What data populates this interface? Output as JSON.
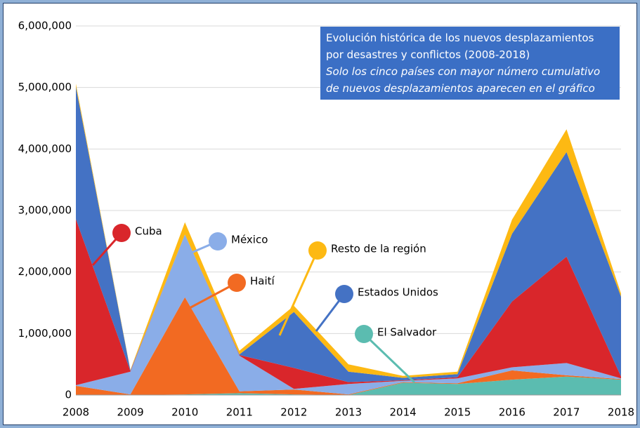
{
  "chart_data": {
    "type": "stacked_area",
    "title": "Evolución histórica de los nuevos desplazamientos por desastres y conflictos (2008-2018)",
    "subtitle": "Solo los cinco países con mayor número cumulativo de nuevos desplazamientos aparecen en el gráfico",
    "x": [
      2008,
      2009,
      2010,
      2011,
      2012,
      2013,
      2014,
      2015,
      2016,
      2017,
      2018
    ],
    "xlim": [
      2008,
      2018
    ],
    "xticks": [
      2008,
      2009,
      2010,
      2011,
      2012,
      2013,
      2014,
      2015,
      2016,
      2017,
      2018
    ],
    "ylim": [
      0,
      6000000
    ],
    "yticks": [
      0,
      {
        "value": 1000000,
        "label": "1,000,000"
      },
      {
        "value": 2000000,
        "label": "2,000,000"
      },
      {
        "value": 3000000,
        "label": "3,000,000"
      },
      {
        "value": 4000000,
        "label": "4,000,000"
      },
      {
        "value": 5000000,
        "label": "5,000,000"
      },
      {
        "value": 6000000,
        "label": "6,000,000"
      }
    ],
    "grid": true,
    "series": [
      {
        "name": "El Salvador",
        "color": "#5bbcb0",
        "values": [
          0,
          0,
          10000,
          30000,
          10000,
          0,
          200000,
          180000,
          250000,
          300000,
          250000
        ]
      },
      {
        "name": "Haití",
        "color": "#f26a22",
        "values": [
          150000,
          10000,
          1580000,
          30000,
          80000,
          10000,
          10000,
          10000,
          150000,
          20000,
          10000
        ]
      },
      {
        "name": "México",
        "color": "#8aade8",
        "values": [
          10000,
          370000,
          1020000,
          580000,
          10000,
          170000,
          20000,
          80000,
          50000,
          200000,
          10000
        ]
      },
      {
        "name": "Cuba",
        "color": "#d9262b",
        "values": [
          2700000,
          10000,
          0,
          10000,
          340000,
          30000,
          10000,
          20000,
          1070000,
          1730000,
          30000
        ]
      },
      {
        "name": "Estados Unidos",
        "color": "#4472c4",
        "values": [
          2150000,
          10000,
          0,
          10000,
          910000,
          170000,
          40000,
          50000,
          1100000,
          1700000,
          1300000
        ]
      },
      {
        "name": "Resto de la región",
        "color": "#fdb913",
        "values": [
          50000,
          10000,
          200000,
          60000,
          100000,
          120000,
          30000,
          40000,
          230000,
          370000,
          50000
        ]
      }
    ]
  }
}
